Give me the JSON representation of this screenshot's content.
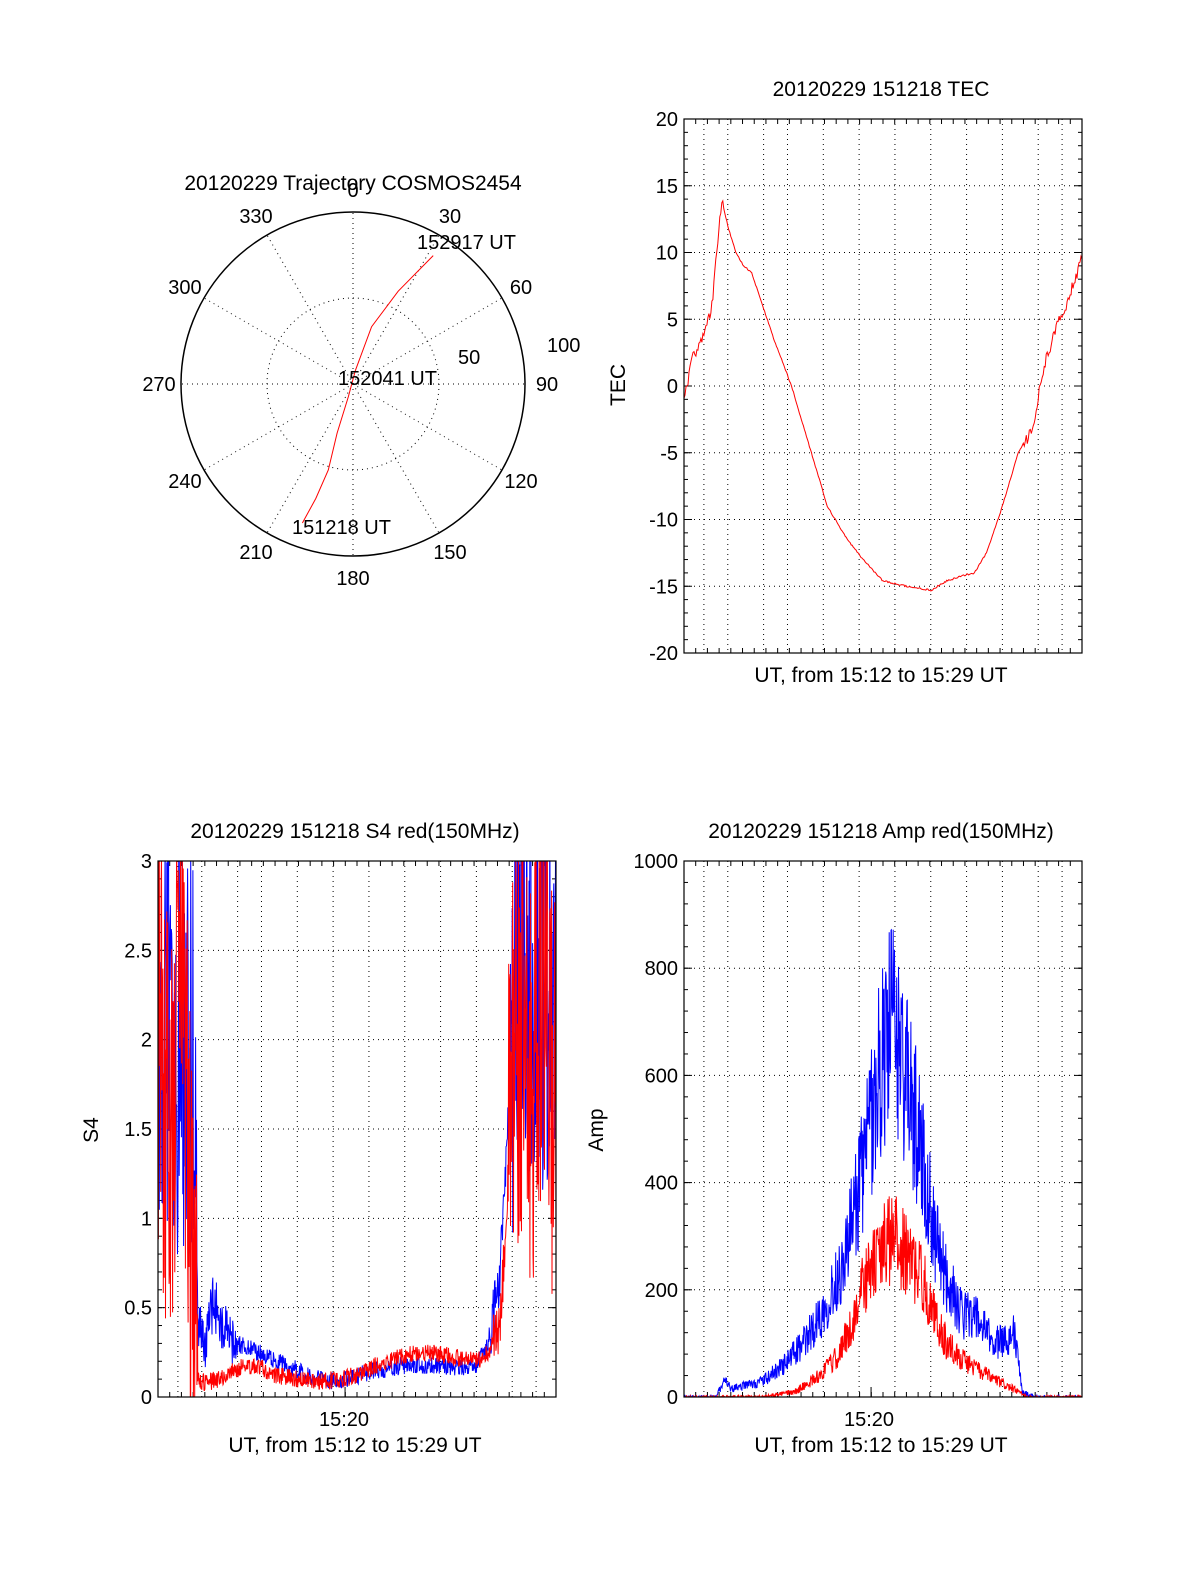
{
  "colors": {
    "red": "#ff0000",
    "blue": "#0000ff",
    "grid": "#000000"
  },
  "chart_data": [
    {
      "id": "trajectory",
      "type": "scatter",
      "title": "20120229 Trajectory COSMOS2454",
      "azimuth_labels": [
        "0",
        "30",
        "60",
        "90",
        "120",
        "150",
        "180",
        "210",
        "240",
        "270",
        "300",
        "330"
      ],
      "radius_labels": [
        "50",
        "100"
      ],
      "rlim": [
        0,
        100
      ],
      "grid": true,
      "annotations": [
        "152917 UT",
        "152041 UT",
        "151218 UT"
      ],
      "series": [
        {
          "color": "red",
          "points": [
            {
              "az": 200,
              "r": 86,
              "time": "151218 UT"
            },
            {
              "az": 198,
              "r": 70
            },
            {
              "az": 196,
              "r": 52
            },
            {
              "az": 198,
              "r": 30
            },
            {
              "az": 200,
              "r": 8
            },
            {
              "az": 10,
              "r": 8,
              "time": "152041 UT"
            },
            {
              "az": 18,
              "r": 35
            },
            {
              "az": 26,
              "r": 60
            },
            {
              "az": 32,
              "r": 88,
              "time": "152917 UT"
            }
          ]
        }
      ]
    },
    {
      "id": "tec",
      "type": "line",
      "title": "20120229 151218 TEC",
      "xlabel": "UT, from 15:12 to 15:29 UT",
      "ylabel": "TEC",
      "xlim": [
        0,
        1
      ],
      "ylim": [
        -20,
        20
      ],
      "yticks": [
        "20",
        "15",
        "10",
        "5",
        "0",
        "-5",
        "-10",
        "-15",
        "-20"
      ],
      "grid": true,
      "series": [
        {
          "color": "red",
          "points": [
            [
              0.0,
              -1
            ],
            [
              0.02,
              2
            ],
            [
              0.05,
              4
            ],
            [
              0.07,
              6
            ],
            [
              0.085,
              11
            ],
            [
              0.095,
              14
            ],
            [
              0.11,
              12
            ],
            [
              0.13,
              10
            ],
            [
              0.15,
              9
            ],
            [
              0.17,
              8.5
            ],
            [
              0.22,
              4
            ],
            [
              0.27,
              0
            ],
            [
              0.31,
              -4
            ],
            [
              0.36,
              -9
            ],
            [
              0.41,
              -11.5
            ],
            [
              0.45,
              -13
            ],
            [
              0.5,
              -14.6
            ],
            [
              0.56,
              -15
            ],
            [
              0.6,
              -15.2
            ],
            [
              0.62,
              -15.3
            ],
            [
              0.66,
              -14.6
            ],
            [
              0.7,
              -14.2
            ],
            [
              0.73,
              -14
            ],
            [
              0.76,
              -12.5
            ],
            [
              0.8,
              -9
            ],
            [
              0.84,
              -5
            ],
            [
              0.88,
              -3
            ],
            [
              0.9,
              1
            ],
            [
              0.93,
              4
            ],
            [
              0.96,
              6
            ],
            [
              1.0,
              9.5
            ]
          ]
        }
      ]
    },
    {
      "id": "s4",
      "type": "line",
      "title": "20120229 151218 S4 red(150MHz)",
      "xlabel": "UT, from 15:12 to 15:29 UT",
      "ylabel": "S4",
      "xtick_label": "15:20",
      "xlim": [
        0,
        1
      ],
      "ylim": [
        0,
        3
      ],
      "yticks": [
        "3",
        "2.5",
        "2",
        "1.5",
        "1",
        "0.5",
        "0"
      ],
      "grid": true,
      "series": [
        {
          "color": "blue",
          "points": [
            [
              0.0,
              2.3
            ],
            [
              0.02,
              2.2
            ],
            [
              0.04,
              2.1
            ],
            [
              0.07,
              2.0
            ],
            [
              0.09,
              1.8
            ],
            [
              0.1,
              0.4
            ],
            [
              0.12,
              0.3
            ],
            [
              0.14,
              0.55
            ],
            [
              0.16,
              0.38
            ],
            [
              0.2,
              0.3
            ],
            [
              0.25,
              0.25
            ],
            [
              0.3,
              0.2
            ],
            [
              0.35,
              0.15
            ],
            [
              0.4,
              0.1
            ],
            [
              0.45,
              0.09
            ],
            [
              0.5,
              0.12
            ],
            [
              0.55,
              0.15
            ],
            [
              0.6,
              0.17
            ],
            [
              0.65,
              0.18
            ],
            [
              0.7,
              0.18
            ],
            [
              0.75,
              0.16
            ],
            [
              0.8,
              0.18
            ],
            [
              0.83,
              0.3
            ],
            [
              0.86,
              0.7
            ],
            [
              0.88,
              1.6
            ],
            [
              0.9,
              2.4
            ],
            [
              0.92,
              2.6
            ],
            [
              0.96,
              2.4
            ],
            [
              1.0,
              2.5
            ]
          ]
        },
        {
          "color": "red",
          "points": [
            [
              0.0,
              2.0
            ],
            [
              0.03,
              1.5
            ],
            [
              0.06,
              2.2
            ],
            [
              0.08,
              1.0
            ],
            [
              0.1,
              0.1
            ],
            [
              0.12,
              0.08
            ],
            [
              0.15,
              0.1
            ],
            [
              0.2,
              0.16
            ],
            [
              0.25,
              0.17
            ],
            [
              0.3,
              0.12
            ],
            [
              0.35,
              0.1
            ],
            [
              0.4,
              0.08
            ],
            [
              0.45,
              0.1
            ],
            [
              0.5,
              0.12
            ],
            [
              0.55,
              0.18
            ],
            [
              0.6,
              0.22
            ],
            [
              0.65,
              0.25
            ],
            [
              0.7,
              0.24
            ],
            [
              0.75,
              0.22
            ],
            [
              0.8,
              0.2
            ],
            [
              0.83,
              0.25
            ],
            [
              0.86,
              0.4
            ],
            [
              0.88,
              1.2
            ],
            [
              0.9,
              2.2
            ],
            [
              0.93,
              1.6
            ],
            [
              0.96,
              2.4
            ],
            [
              1.0,
              1.5
            ]
          ]
        }
      ]
    },
    {
      "id": "amp",
      "type": "line",
      "title": "20120229 151218 Amp red(150MHz)",
      "xlabel": "UT, from 15:12 to 15:29 UT",
      "ylabel": "Amp",
      "xtick_label": "15:20",
      "xlim": [
        0,
        1
      ],
      "ylim": [
        0,
        1000
      ],
      "yticks": [
        "1000",
        "800",
        "600",
        "400",
        "200",
        "0"
      ],
      "grid": true,
      "series": [
        {
          "color": "blue",
          "points": [
            [
              0.0,
              0
            ],
            [
              0.08,
              0
            ],
            [
              0.1,
              30
            ],
            [
              0.12,
              15
            ],
            [
              0.2,
              30
            ],
            [
              0.25,
              60
            ],
            [
              0.3,
              100
            ],
            [
              0.35,
              160
            ],
            [
              0.4,
              250
            ],
            [
              0.43,
              350
            ],
            [
              0.46,
              470
            ],
            [
              0.48,
              560
            ],
            [
              0.5,
              640
            ],
            [
              0.52,
              700
            ],
            [
              0.55,
              620
            ],
            [
              0.58,
              520
            ],
            [
              0.6,
              450
            ],
            [
              0.63,
              300
            ],
            [
              0.66,
              220
            ],
            [
              0.7,
              150
            ],
            [
              0.72,
              160
            ],
            [
              0.75,
              130
            ],
            [
              0.78,
              100
            ],
            [
              0.81,
              110
            ],
            [
              0.83,
              120
            ],
            [
              0.85,
              10
            ],
            [
              0.88,
              0
            ],
            [
              1.0,
              0
            ]
          ]
        },
        {
          "color": "red",
          "points": [
            [
              0.0,
              0
            ],
            [
              0.2,
              0
            ],
            [
              0.28,
              10
            ],
            [
              0.34,
              40
            ],
            [
              0.38,
              70
            ],
            [
              0.42,
              130
            ],
            [
              0.45,
              210
            ],
            [
              0.48,
              250
            ],
            [
              0.5,
              280
            ],
            [
              0.53,
              300
            ],
            [
              0.56,
              260
            ],
            [
              0.6,
              220
            ],
            [
              0.63,
              150
            ],
            [
              0.66,
              100
            ],
            [
              0.7,
              70
            ],
            [
              0.75,
              45
            ],
            [
              0.8,
              25
            ],
            [
              0.84,
              10
            ],
            [
              0.86,
              0
            ],
            [
              1.0,
              0
            ]
          ]
        }
      ]
    }
  ]
}
